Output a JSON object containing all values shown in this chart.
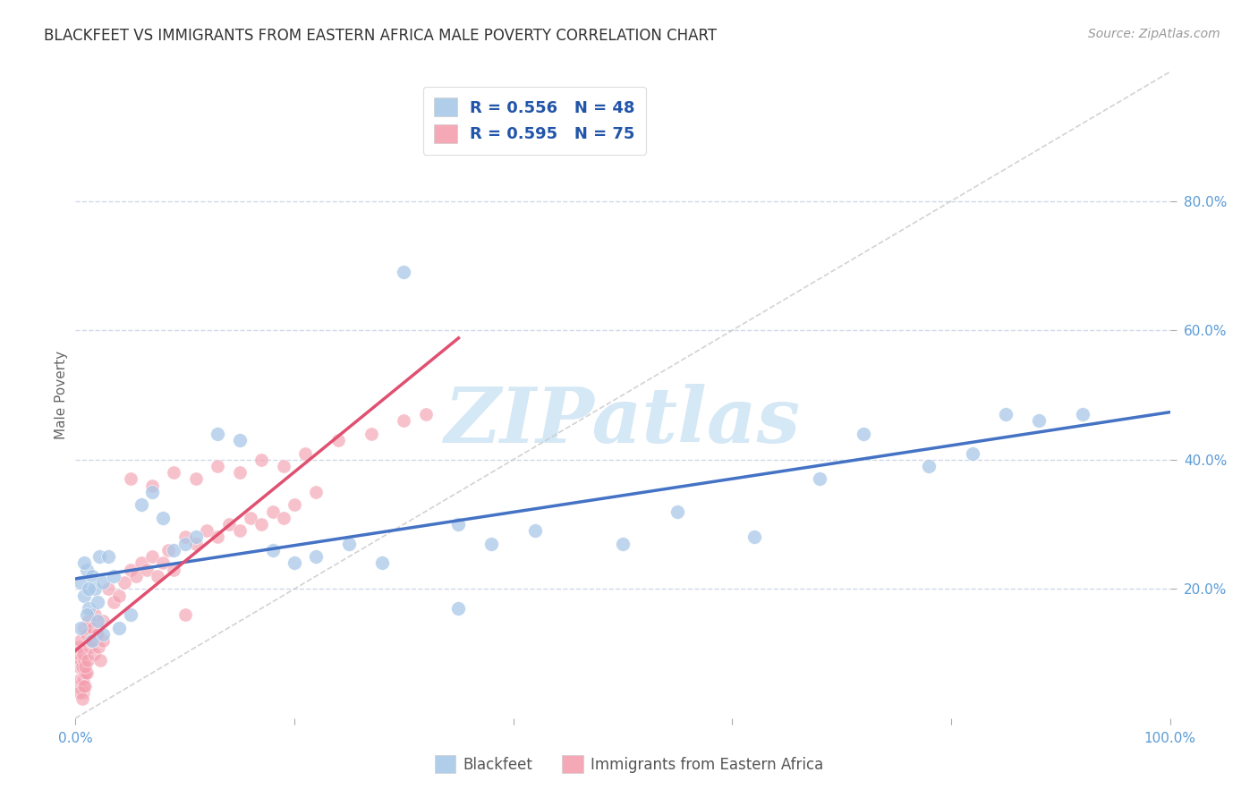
{
  "title": "BLACKFEET VS IMMIGRANTS FROM EASTERN AFRICA MALE POVERTY CORRELATION CHART",
  "source": "Source: ZipAtlas.com",
  "ylabel": "Male Poverty",
  "xlim": [
    0,
    1.0
  ],
  "ylim": [
    0,
    1.0
  ],
  "xticks": [
    0.0,
    0.2,
    0.4,
    0.6,
    0.8,
    1.0
  ],
  "yticks": [
    0.2,
    0.4,
    0.6,
    0.8
  ],
  "xticklabels_left": [
    "0.0%"
  ],
  "xticklabels_right": [
    "100.0%"
  ],
  "yticklabels": [
    "20.0%",
    "40.0%",
    "60.0%",
    "80.0%"
  ],
  "blackfeet_R": 0.556,
  "blackfeet_N": 48,
  "immigrants_R": 0.595,
  "immigrants_N": 75,
  "blackfeet_color": "#a8c8e8",
  "immigrants_color": "#f4a0b0",
  "blackfeet_line_color": "#4472c4",
  "immigrants_line_color": "#e05070",
  "diagonal_color": "#c8c8c8",
  "background_color": "#ffffff",
  "grid_color": "#d0d8e8",
  "tick_color": "#5b9bd5",
  "watermark_color": "#d5e8f5",
  "watermark": "ZIPatlas",
  "blackfeet_x": [
    0.005,
    0.008,
    0.01,
    0.012,
    0.015,
    0.018,
    0.02,
    0.022,
    0.025,
    0.005,
    0.01,
    0.015,
    0.02,
    0.025,
    0.008,
    0.012,
    0.03,
    0.035,
    0.04,
    0.05,
    0.06,
    0.07,
    0.08,
    0.09,
    0.1,
    0.11,
    0.13,
    0.15,
    0.18,
    0.2,
    0.22,
    0.25,
    0.28,
    0.35,
    0.38,
    0.42,
    0.5,
    0.55,
    0.62,
    0.68,
    0.72,
    0.78,
    0.82,
    0.85,
    0.88,
    0.92,
    0.3,
    0.35
  ],
  "blackfeet_y": [
    0.21,
    0.19,
    0.23,
    0.17,
    0.22,
    0.2,
    0.18,
    0.25,
    0.21,
    0.14,
    0.16,
    0.12,
    0.15,
    0.13,
    0.24,
    0.2,
    0.25,
    0.22,
    0.14,
    0.16,
    0.33,
    0.35,
    0.31,
    0.26,
    0.27,
    0.28,
    0.44,
    0.43,
    0.26,
    0.24,
    0.25,
    0.27,
    0.24,
    0.3,
    0.27,
    0.29,
    0.27,
    0.32,
    0.28,
    0.37,
    0.44,
    0.39,
    0.41,
    0.47,
    0.46,
    0.47,
    0.69,
    0.17
  ],
  "immigrants_x": [
    0.003,
    0.005,
    0.007,
    0.008,
    0.009,
    0.003,
    0.005,
    0.007,
    0.009,
    0.004,
    0.006,
    0.008,
    0.01,
    0.003,
    0.005,
    0.007,
    0.009,
    0.011,
    0.013,
    0.015,
    0.017,
    0.019,
    0.021,
    0.023,
    0.025,
    0.008,
    0.01,
    0.012,
    0.014,
    0.016,
    0.018,
    0.02,
    0.025,
    0.03,
    0.035,
    0.04,
    0.045,
    0.05,
    0.055,
    0.06,
    0.065,
    0.07,
    0.075,
    0.08,
    0.085,
    0.09,
    0.1,
    0.11,
    0.12,
    0.13,
    0.14,
    0.15,
    0.16,
    0.17,
    0.18,
    0.19,
    0.2,
    0.22,
    0.05,
    0.07,
    0.09,
    0.11,
    0.13,
    0.15,
    0.17,
    0.19,
    0.21,
    0.24,
    0.27,
    0.3,
    0.004,
    0.006,
    0.008,
    0.32,
    0.1
  ],
  "immigrants_y": [
    0.05,
    0.06,
    0.04,
    0.07,
    0.05,
    0.08,
    0.09,
    0.06,
    0.07,
    0.1,
    0.08,
    0.09,
    0.07,
    0.11,
    0.12,
    0.1,
    0.08,
    0.09,
    0.11,
    0.12,
    0.1,
    0.13,
    0.11,
    0.09,
    0.12,
    0.14,
    0.13,
    0.15,
    0.12,
    0.14,
    0.16,
    0.13,
    0.15,
    0.2,
    0.18,
    0.19,
    0.21,
    0.23,
    0.22,
    0.24,
    0.23,
    0.25,
    0.22,
    0.24,
    0.26,
    0.23,
    0.28,
    0.27,
    0.29,
    0.28,
    0.3,
    0.29,
    0.31,
    0.3,
    0.32,
    0.31,
    0.33,
    0.35,
    0.37,
    0.36,
    0.38,
    0.37,
    0.39,
    0.38,
    0.4,
    0.39,
    0.41,
    0.43,
    0.44,
    0.46,
    0.04,
    0.03,
    0.05,
    0.47,
    0.16
  ]
}
